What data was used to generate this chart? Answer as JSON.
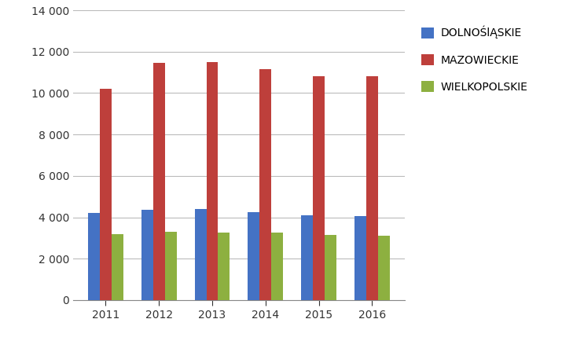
{
  "years": [
    "2011",
    "2012",
    "2013",
    "2014",
    "2015",
    "2016"
  ],
  "dolnoslaskie": [
    4200,
    4350,
    4400,
    4250,
    4100,
    4050
  ],
  "mazowieckie": [
    10200,
    11450,
    11500,
    11150,
    10800,
    10800
  ],
  "wielkopolskie": [
    3200,
    3300,
    3250,
    3250,
    3150,
    3100
  ],
  "colors": {
    "dolnoslaskie": "#4472C4",
    "mazowieckie": "#BE3F3B",
    "wielkopolskie": "#8DB040"
  },
  "legend_labels": [
    "DOLNOŚlĄSKIE",
    "MAZOWIECKIE",
    "WIELKOPOLSKIE"
  ],
  "ylim": [
    0,
    14000
  ],
  "yticks": [
    0,
    2000,
    4000,
    6000,
    8000,
    10000,
    12000,
    14000
  ],
  "background_color": "#FFFFFF",
  "grid_color": "#BBBBBB",
  "bar_width": 0.22,
  "figsize": [
    7.15,
    4.34
  ],
  "dpi": 100
}
